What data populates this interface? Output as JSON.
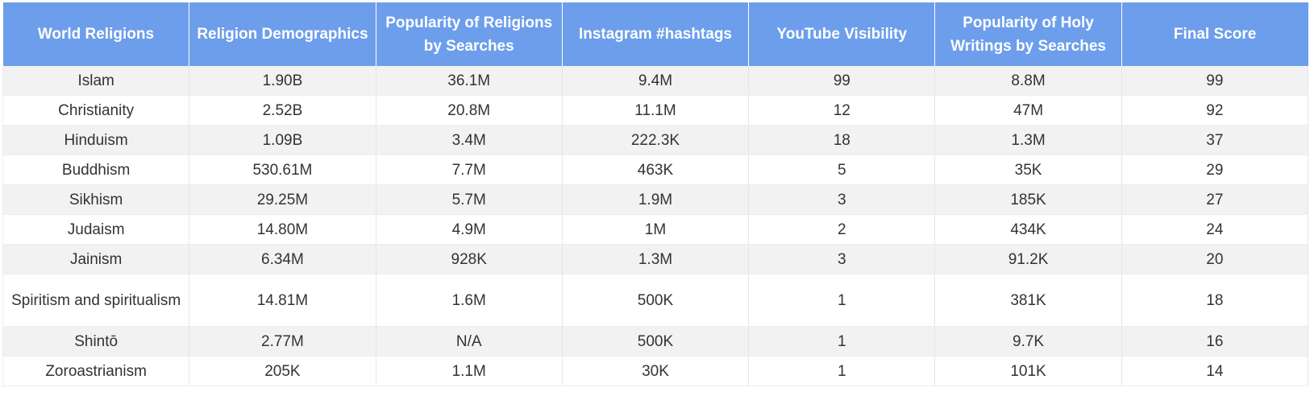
{
  "table": {
    "headers": [
      "World Religions",
      "Religion Demographics",
      "Popularity of Religions by Searches",
      "Instagram #hashtags",
      "YouTube Visibility",
      "Popularity of Holy Writings by Searches",
      "Final Score"
    ],
    "rows": [
      [
        "Islam",
        "1.90B",
        "36.1M",
        "9.4M",
        "99",
        "8.8M",
        "99"
      ],
      [
        "Christianity",
        "2.52B",
        "20.8M",
        "11.1M",
        "12",
        "47M",
        "92"
      ],
      [
        "Hinduism",
        "1.09B",
        "3.4M",
        "222.3K",
        "18",
        "1.3M",
        "37"
      ],
      [
        "Buddhism",
        "530.61M",
        "7.7M",
        "463K",
        "5",
        "35K",
        "29"
      ],
      [
        "Sikhism",
        "29.25M",
        "5.7M",
        "1.9M",
        "3",
        "185K",
        "27"
      ],
      [
        "Judaism",
        "14.80M",
        "4.9M",
        "1M",
        "2",
        "434K",
        "24"
      ],
      [
        "Jainism",
        "6.34M",
        "928K",
        "1.3M",
        "3",
        "91.2K",
        "20"
      ],
      [
        "Spiritism and spiritualism",
        "14.81M",
        "1.6M",
        "500K",
        "1",
        "381K",
        "18"
      ],
      [
        "Shintō",
        "2.77M",
        "N/A",
        "500K",
        "1",
        "9.7K",
        "16"
      ],
      [
        "Zoroastrianism",
        "205K",
        "1.1M",
        "30K",
        "1",
        "101K",
        "14"
      ]
    ]
  },
  "colors": {
    "header_bg": "#6d9eeb",
    "header_text": "#ffffff",
    "stripe_bg": "#f2f2f2",
    "cell_text": "#333333"
  }
}
